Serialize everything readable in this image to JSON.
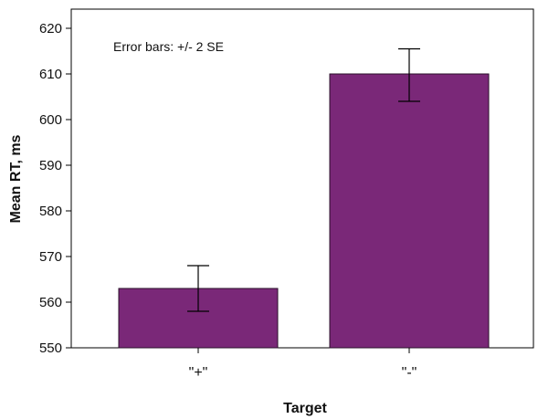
{
  "chart_data": {
    "type": "bar",
    "categories": [
      "\"+\"",
      "\"-\""
    ],
    "values": [
      563,
      610
    ],
    "error_bars": {
      "lower": [
        558,
        604
      ],
      "upper": [
        568,
        615.5
      ]
    },
    "annotation": "Error bars: +/- 2 SE",
    "xlabel": "Target",
    "ylabel": "Mean RT, ms",
    "ylim": [
      550,
      620
    ],
    "yticks": [
      550,
      560,
      570,
      580,
      590,
      600,
      610,
      620
    ],
    "grid": false,
    "colors": {
      "bar": "#7a2878",
      "bar_edge": "#2a0f2a",
      "axis": "#000000"
    }
  }
}
